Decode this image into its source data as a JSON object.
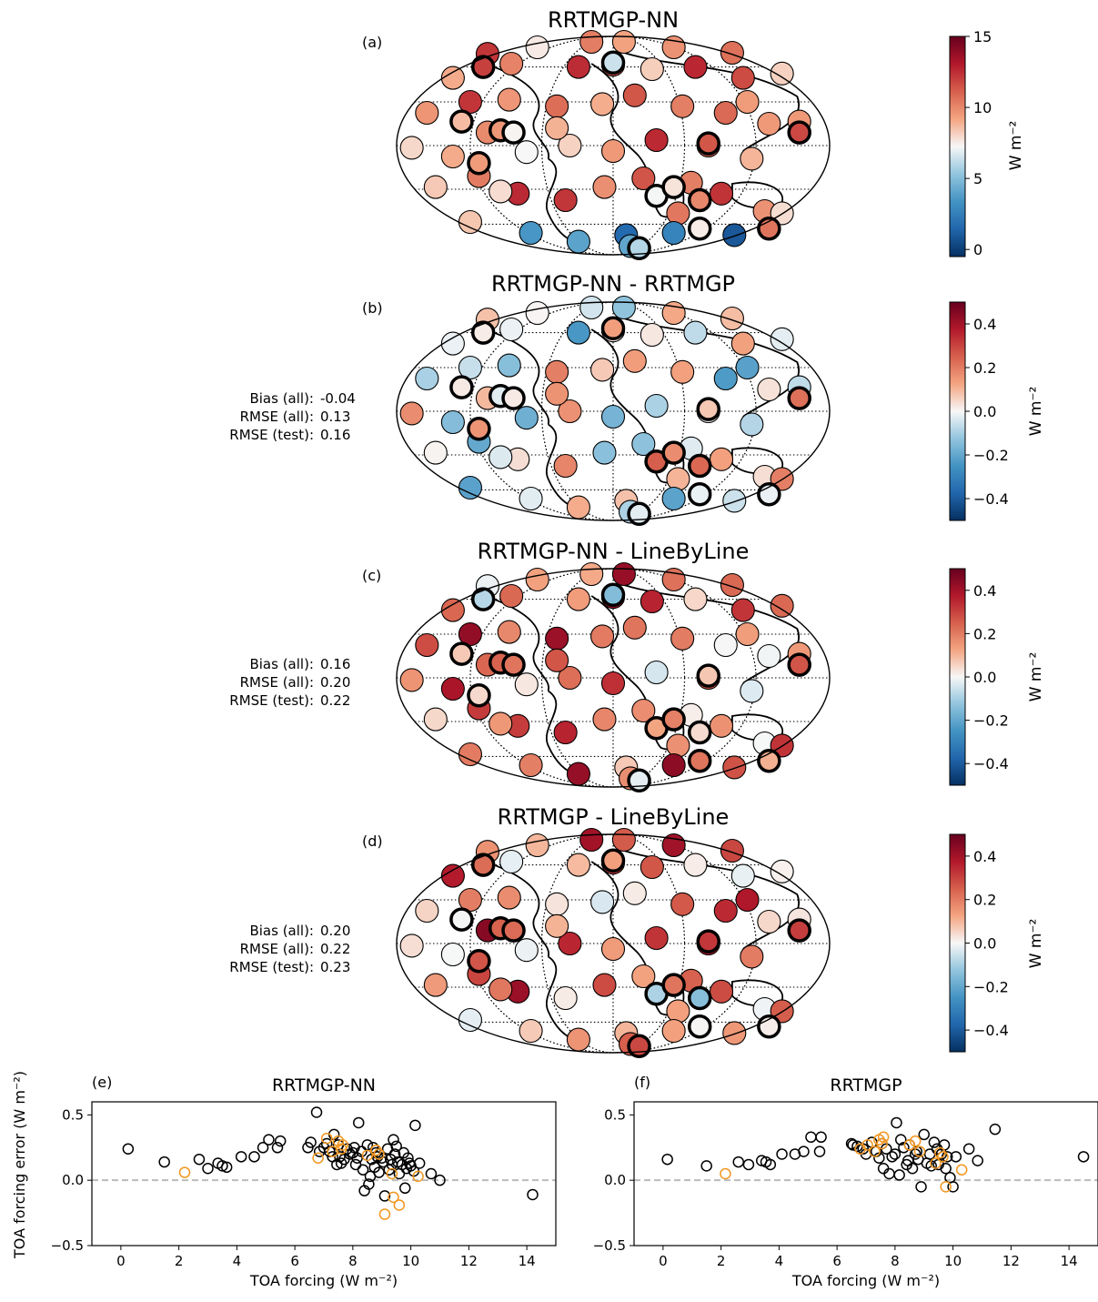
{
  "figure": {
    "panels": [
      {
        "id": "a",
        "letter": "(a)",
        "title": "RRTMGP-NN",
        "colorbar": {
          "label": "W m⁻²",
          "min": -0.5,
          "max": 15,
          "ticks": [
            "0",
            "5",
            "10",
            "15"
          ],
          "tick_values": [
            0,
            5,
            10,
            15
          ],
          "cmap": "RdBu_r"
        },
        "stats": null
      },
      {
        "id": "b",
        "letter": "(b)",
        "title": "RRTMGP-NN - RRTMGP",
        "colorbar": {
          "label": "W m⁻²",
          "min": -0.5,
          "max": 0.5,
          "ticks": [
            "−0.4",
            "−0.2",
            "0.0",
            "0.2",
            "0.4"
          ],
          "tick_values": [
            -0.4,
            -0.2,
            0.0,
            0.2,
            0.4
          ],
          "cmap": "RdBu_r"
        },
        "stats": {
          "labels": [
            "Bias (all):",
            "RMSE (all):",
            "RMSE (test):"
          ],
          "values": [
            "-0.04",
            "0.13",
            "0.16"
          ]
        }
      },
      {
        "id": "c",
        "letter": "(c)",
        "title": "RRTMGP-NN - LineByLine",
        "colorbar": {
          "label": "W m⁻²",
          "min": -0.5,
          "max": 0.5,
          "ticks": [
            "−0.4",
            "−0.2",
            "0.0",
            "0.2",
            "0.4"
          ],
          "tick_values": [
            -0.4,
            -0.2,
            0.0,
            0.2,
            0.4
          ],
          "cmap": "RdBu_r"
        },
        "stats": {
          "labels": [
            "Bias (all):",
            "RMSE (all):",
            "RMSE (test):"
          ],
          "values": [
            "0.16",
            "0.20",
            "0.22"
          ]
        }
      },
      {
        "id": "d",
        "letter": "(d)",
        "title": "RRTMGP - LineByLine",
        "colorbar": {
          "label": "W m⁻²",
          "min": -0.5,
          "max": 0.5,
          "ticks": [
            "−0.4",
            "−0.2",
            "0.0",
            "0.2",
            "0.4"
          ],
          "tick_values": [
            -0.4,
            -0.2,
            0.0,
            0.2,
            0.4
          ],
          "cmap": "RdBu_r"
        },
        "stats": {
          "labels": [
            "Bias (all):",
            "RMSE (all):",
            "RMSE (test):"
          ],
          "values": [
            "0.20",
            "0.22",
            "0.23"
          ]
        }
      }
    ],
    "colors": {
      "train_marker": "#000000",
      "test_marker": "#f2961f",
      "zero_line": "#bbbbbb"
    }
  },
  "chart_data": [
    {
      "type": "scatter",
      "letter": "(e)",
      "title": "RRTMGP-NN",
      "xlabel": "TOA forcing (W m⁻²)",
      "ylabel": "TOA forcing error (W m⁻²)",
      "xlim": [
        -1,
        15
      ],
      "ylim": [
        -0.5,
        0.6
      ],
      "xticks": [
        0,
        2,
        4,
        6,
        8,
        10,
        12,
        14
      ],
      "yticks": [
        -0.5,
        0.0,
        0.5
      ],
      "xtick_labels": [
        "0",
        "2",
        "4",
        "6",
        "8",
        "10",
        "12",
        "14"
      ],
      "ytick_labels": [
        "−0.5",
        "0.0",
        "0.5"
      ],
      "hline": 0.0,
      "series": [
        {
          "x": [
            0.25,
            1.5,
            2.7,
            3.0,
            3.35,
            3.5,
            3.65,
            4.15,
            4.6,
            4.9,
            5.1,
            5.4,
            5.5,
            6.45,
            6.55,
            6.75,
            6.85,
            7.0,
            7.1,
            7.2,
            7.3,
            7.35,
            7.45,
            7.5,
            7.55,
            7.6,
            7.7,
            7.8,
            7.9,
            8.0,
            8.05,
            8.1,
            8.15,
            8.2,
            8.3,
            8.35,
            8.4,
            8.5,
            8.55,
            8.6,
            8.65,
            8.7,
            8.75,
            8.8,
            8.85,
            8.9,
            9.0,
            9.05,
            9.1,
            9.2,
            9.25,
            9.3,
            9.35,
            9.4,
            9.45,
            9.5,
            9.55,
            9.6,
            9.7,
            9.75,
            9.8,
            9.85,
            9.9,
            9.95,
            10.0,
            10.1,
            10.15,
            10.3,
            10.7,
            11.0,
            14.2
          ],
          "y": [
            0.24,
            0.14,
            0.16,
            0.09,
            0.13,
            0.11,
            0.1,
            0.18,
            0.18,
            0.25,
            0.31,
            0.25,
            0.3,
            0.25,
            0.29,
            0.52,
            0.22,
            0.25,
            0.28,
            0.22,
            0.18,
            0.35,
            0.12,
            0.27,
            0.18,
            0.13,
            0.16,
            0.24,
            0.2,
            0.21,
            0.25,
            0.12,
            0.17,
            0.44,
            0.22,
            0.08,
            -0.08,
            0.27,
            -0.03,
            0.03,
            0.16,
            0.25,
            0.1,
            0.21,
            0.18,
            0.06,
            0.17,
            0.14,
            -0.12,
            0.24,
            0.08,
            0.16,
            0.12,
            0.31,
            0.2,
            0.26,
            0.14,
            0.05,
            0.12,
            0.21,
            -0.06,
            0.09,
            0.17,
            0.13,
            0.11,
            0.07,
            0.42,
            0.13,
            0.05,
            0.0,
            -0.11
          ]
        },
        {
          "x": [
            2.2,
            6.8,
            7.1,
            7.3,
            7.5,
            7.6,
            7.65,
            8.5,
            8.8,
            8.9,
            9.1,
            9.35,
            9.4,
            9.6,
            10.25
          ],
          "y": [
            0.06,
            0.17,
            0.32,
            0.22,
            0.3,
            0.24,
            0.27,
            0.19,
            0.23,
            0.2,
            -0.26,
            0.05,
            -0.13,
            -0.19,
            0.03
          ]
        }
      ]
    },
    {
      "type": "scatter",
      "letter": "(f)",
      "title": "RRTMGP",
      "xlabel": "TOA forcing (W m⁻²)",
      "ylabel": "",
      "xlim": [
        -1,
        15
      ],
      "ylim": [
        -0.5,
        0.6
      ],
      "xticks": [
        0,
        2,
        4,
        6,
        8,
        10,
        12,
        14
      ],
      "yticks": [
        -0.5,
        0.0,
        0.5
      ],
      "xtick_labels": [
        "0",
        "2",
        "4",
        "6",
        "8",
        "10",
        "12",
        "14"
      ],
      "ytick_labels": [
        "−0.5",
        "0.0",
        "0.5"
      ],
      "hline": 0.0,
      "series": [
        {
          "x": [
            0.15,
            1.5,
            2.6,
            2.95,
            3.4,
            3.55,
            3.7,
            4.1,
            4.55,
            4.85,
            5.1,
            5.4,
            5.45,
            6.5,
            6.55,
            6.7,
            6.9,
            7.0,
            7.2,
            7.35,
            7.45,
            7.55,
            7.6,
            7.7,
            7.8,
            7.9,
            8.0,
            8.05,
            8.15,
            8.2,
            8.3,
            8.4,
            8.45,
            8.5,
            8.6,
            8.7,
            8.75,
            8.8,
            8.9,
            9.0,
            9.1,
            9.2,
            9.25,
            9.35,
            9.45,
            9.5,
            9.6,
            9.7,
            9.75,
            9.8,
            9.9,
            10.0,
            10.1,
            10.55,
            10.85,
            11.45,
            14.5
          ],
          "y": [
            0.16,
            0.11,
            0.14,
            0.12,
            0.15,
            0.14,
            0.12,
            0.2,
            0.2,
            0.22,
            0.33,
            0.22,
            0.33,
            0.28,
            0.27,
            0.26,
            0.24,
            0.2,
            0.29,
            0.22,
            0.17,
            0.28,
            0.09,
            0.24,
            0.05,
            0.18,
            0.2,
            0.44,
            0.04,
            0.31,
            0.25,
            0.12,
            0.15,
            0.27,
            0.09,
            0.2,
            0.22,
            0.16,
            -0.05,
            0.35,
            0.13,
            0.2,
            0.11,
            0.29,
            0.24,
            0.12,
            0.2,
            0.27,
            0.09,
            0.18,
            0.02,
            -0.05,
            0.18,
            0.24,
            0.15,
            0.39,
            0.18
          ]
        },
        {
          "x": [
            2.15,
            6.8,
            7.05,
            7.3,
            7.45,
            7.55,
            7.6,
            8.5,
            8.7,
            8.85,
            9.4,
            9.55,
            9.65,
            9.75,
            10.3
          ],
          "y": [
            0.05,
            0.24,
            0.27,
            0.22,
            0.31,
            0.28,
            0.33,
            0.27,
            0.3,
            0.22,
            0.13,
            0.21,
            0.18,
            -0.05,
            0.08
          ]
        }
      ]
    }
  ]
}
